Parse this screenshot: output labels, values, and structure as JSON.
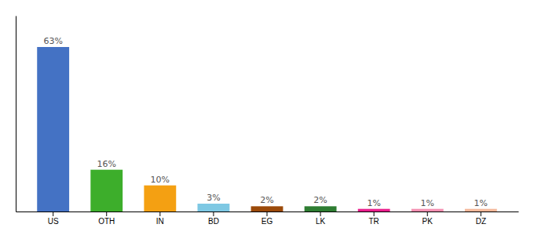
{
  "chart_data": {
    "type": "bar",
    "categories": [
      "US",
      "OTH",
      "IN",
      "BD",
      "EG",
      "LK",
      "TR",
      "PK",
      "DZ"
    ],
    "values": [
      63,
      16,
      10,
      3,
      2,
      2,
      1,
      1,
      1
    ],
    "value_labels": [
      "63%",
      "16%",
      "10%",
      "3%",
      "2%",
      "2%",
      "1%",
      "1%",
      "1%"
    ],
    "colors": [
      "#4472C4",
      "#3DAE2B",
      "#F4A012",
      "#7EC8E3",
      "#9B4A0A",
      "#2E7D32",
      "#E91E8C",
      "#F48FB1",
      "#F4B89A"
    ],
    "ylim": [
      0,
      75
    ],
    "data_labels": true,
    "tick_labels": "x"
  }
}
